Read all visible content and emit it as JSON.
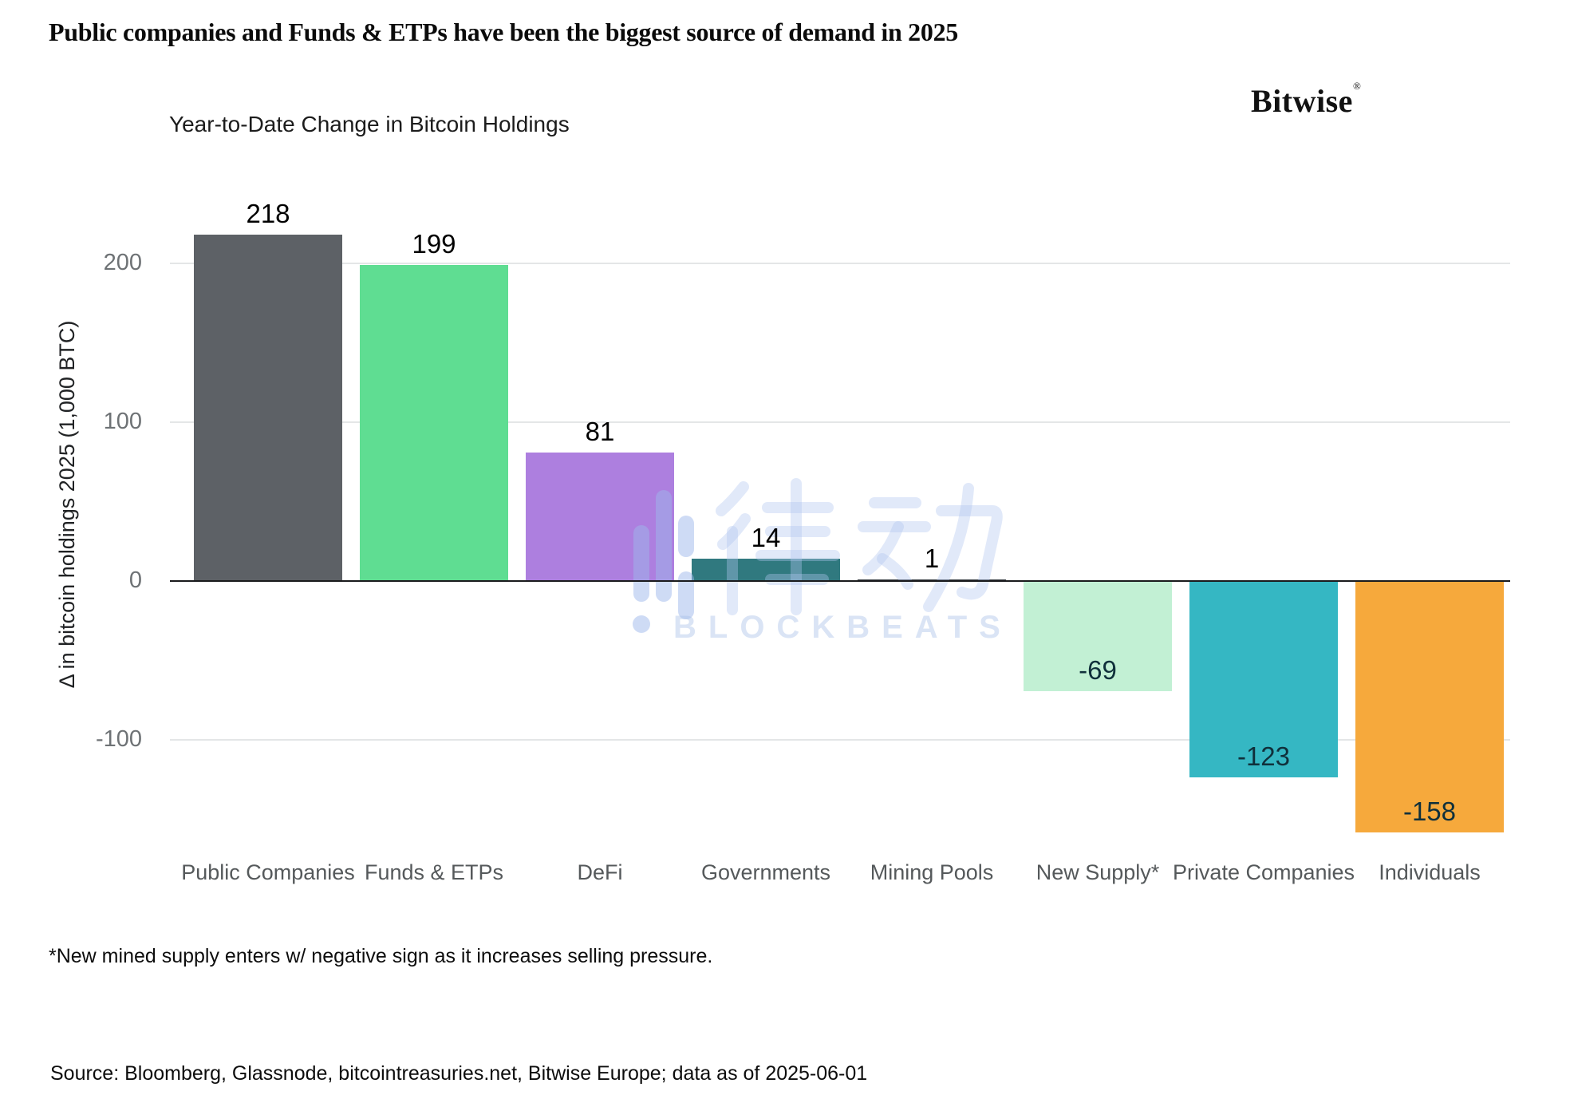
{
  "header": {
    "title": "Public companies and Funds & ETPs have been the biggest source of demand in 2025",
    "logo_text": "Bitwise",
    "logo_reg": "®"
  },
  "chart": {
    "subtitle": "Year-to-Date Change in Bitcoin Holdings",
    "ylabel": "Δ in bitcoin holdings 2025 (1,000 BTC)"
  },
  "chart_data": {
    "type": "bar",
    "title": "Year-to-Date Change in Bitcoin Holdings",
    "categories": [
      "Public Companies",
      "Funds & ETPs",
      "DeFi",
      "Governments",
      "Mining Pools",
      "New Supply*",
      "Private Companies",
      "Individuals"
    ],
    "values": [
      218,
      199,
      81,
      14,
      1,
      -69,
      -123,
      -158
    ],
    "value_labels": [
      "218",
      "199",
      "81",
      "14",
      "1",
      "-69",
      "-123",
      "-158"
    ],
    "colors": [
      "#5d6166",
      "#5fdd92",
      "#ad7fdf",
      "#30797f",
      "#3c4146",
      "#c2f0d4",
      "#35b7c3",
      "#f6a93c"
    ],
    "yticks": [
      200,
      100,
      0,
      -100
    ],
    "ylim": [
      -175,
      240
    ],
    "xlabel": "",
    "ylabel": "Δ in bitcoin holdings 2025 (1,000 BTC)",
    "grid": true,
    "legend": "none",
    "gridline_color": "#e4e6e7",
    "zero_line_color": "#1a1b1d"
  },
  "watermark": {
    "cjk": "律动",
    "latin": "BLOCKBEATS"
  },
  "footnote": "*New mined supply enters w/ negative sign as it increases selling pressure.",
  "source": "Source: Bloomberg, Glassnode, bitcointreasuries.net, Bitwise Europe; data as of 2025-06-01"
}
